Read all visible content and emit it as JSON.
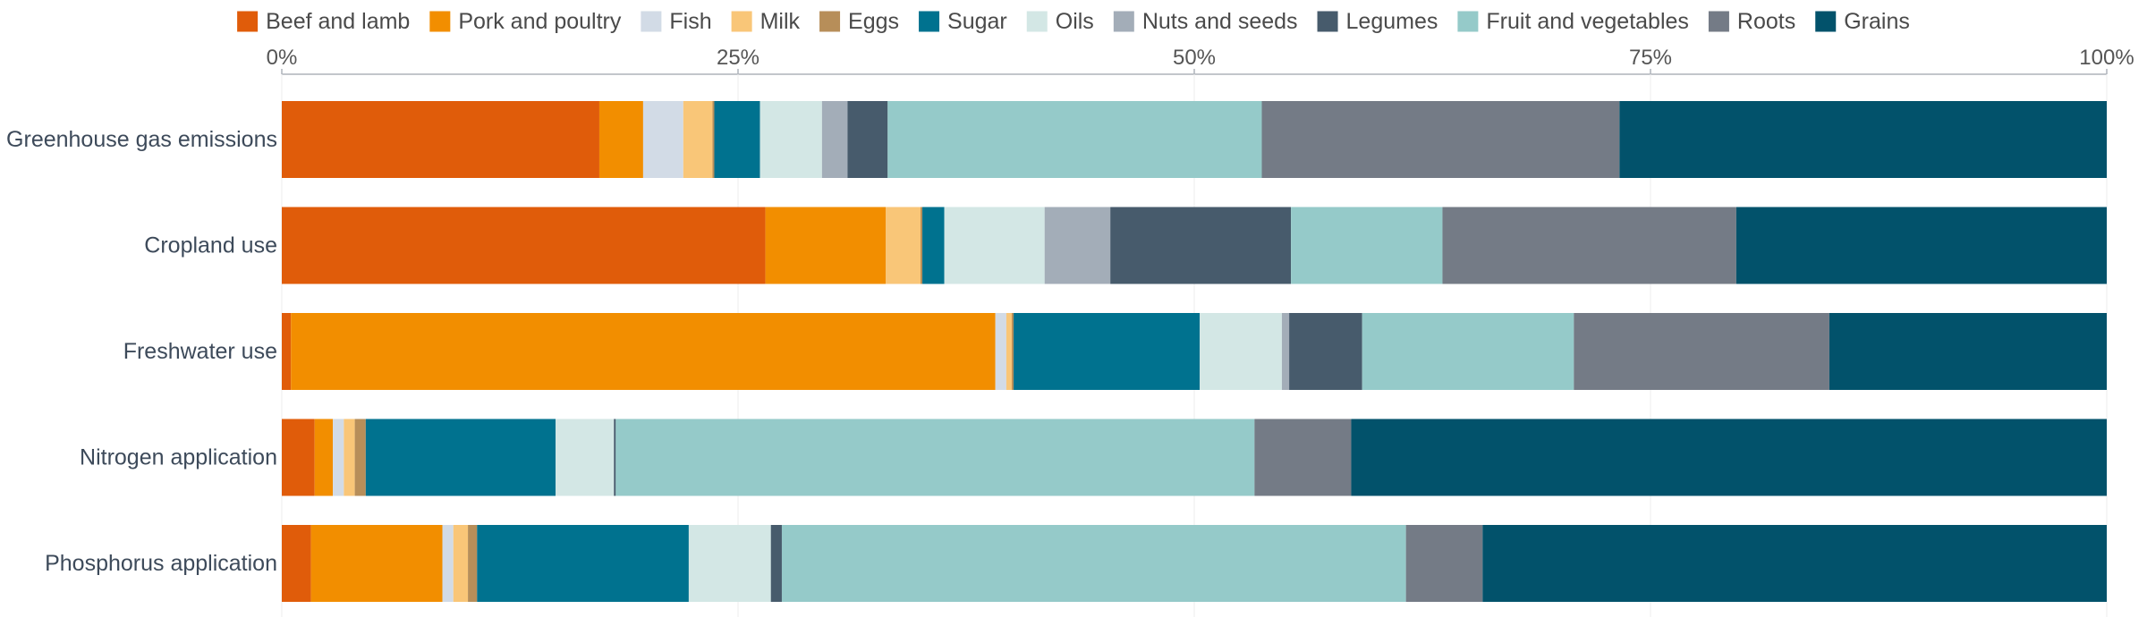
{
  "chart_data": {
    "type": "bar",
    "orientation": "horizontal",
    "stacked": true,
    "normalized": true,
    "legend_position": "top",
    "grid": true,
    "xlim": [
      0,
      100
    ],
    "x_ticks": [
      "0%",
      "25%",
      "50%",
      "75%",
      "100%"
    ],
    "x_tick_values": [
      0,
      25,
      50,
      75,
      100
    ],
    "categories": [
      "Greenhouse gas emissions",
      "Cropland use",
      "Freshwater use",
      "Nitrogen application",
      "Phosphorus application"
    ],
    "series": [
      {
        "name": "Beef and lamb",
        "color": "#e05c0a",
        "values": [
          17.4,
          26.5,
          0.5,
          1.8,
          1.6
        ]
      },
      {
        "name": "Pork and poultry",
        "color": "#f28e00",
        "values": [
          2.4,
          6.6,
          38.6,
          1.0,
          7.2
        ]
      },
      {
        "name": "Fish",
        "color": "#d2dbe6",
        "values": [
          2.2,
          0.0,
          0.6,
          0.6,
          0.6
        ]
      },
      {
        "name": "Milk",
        "color": "#f9c678",
        "values": [
          1.6,
          1.9,
          0.3,
          0.6,
          0.8
        ]
      },
      {
        "name": "Eggs",
        "color": "#b78e59",
        "values": [
          0.1,
          0.1,
          0.1,
          0.6,
          0.5
        ]
      },
      {
        "name": "Sugar",
        "color": "#00728f",
        "values": [
          2.5,
          1.2,
          10.2,
          10.4,
          11.6
        ]
      },
      {
        "name": "Oils",
        "color": "#d3e7e5",
        "values": [
          3.4,
          5.5,
          4.5,
          3.2,
          4.5
        ]
      },
      {
        "name": "Nuts and seeds",
        "color": "#a3adb8",
        "values": [
          1.4,
          3.6,
          0.4,
          0.0,
          0.0
        ]
      },
      {
        "name": "Legumes",
        "color": "#475b6c",
        "values": [
          2.2,
          9.9,
          4.0,
          0.1,
          0.6
        ]
      },
      {
        "name": "Fruit and vegetables",
        "color": "#95cac9",
        "values": [
          20.5,
          8.3,
          11.6,
          35.0,
          34.2
        ]
      },
      {
        "name": "Roots",
        "color": "#747b86",
        "values": [
          19.6,
          16.1,
          14.0,
          5.3,
          4.2
        ]
      },
      {
        "name": "Grains",
        "color": "#02526b",
        "values": [
          26.7,
          20.3,
          15.2,
          41.4,
          34.2
        ]
      }
    ]
  }
}
